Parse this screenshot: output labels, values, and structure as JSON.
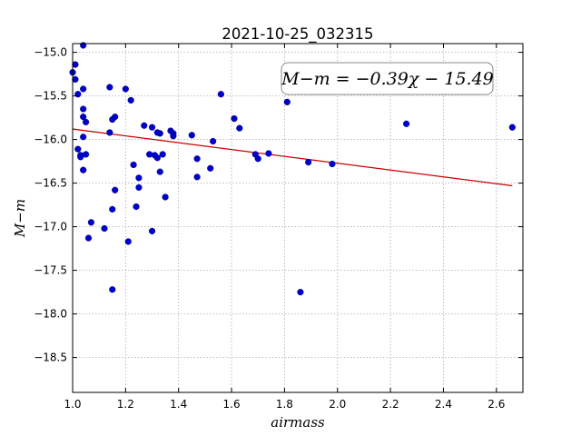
{
  "chart_data": {
    "type": "scatter",
    "title": "2021-10-25_032315",
    "xlabel": "airmass",
    "ylabel": "M−m",
    "xlim": [
      1.0,
      2.7
    ],
    "ylim": [
      -18.9,
      -14.9
    ],
    "y_inverted": true,
    "grid": true,
    "xticks": [
      "1.0",
      "1.2",
      "1.4",
      "1.6",
      "1.8",
      "2.0",
      "2.2",
      "2.4",
      "2.6"
    ],
    "yticks": [
      "−15.0",
      "−15.5",
      "−16.0",
      "−16.5",
      "−17.0",
      "−17.5",
      "−18.0",
      "−18.5"
    ],
    "annotation": "M−m = −0.39χ − 15.49",
    "colors": {
      "points": "#0000cc",
      "fit_line": "#cc0000",
      "frame": "#000000"
    },
    "series": [
      {
        "kind": "points",
        "x": [
          1.0,
          1.01,
          1.04,
          1.01,
          1.02,
          1.04,
          1.04,
          1.04,
          1.05,
          1.04,
          1.02,
          1.03,
          1.04,
          1.05,
          1.03,
          1.07,
          1.06,
          1.14,
          1.2,
          1.22,
          1.14,
          1.15,
          1.16,
          1.27,
          1.3,
          1.32,
          1.33,
          1.32,
          1.29,
          1.31,
          1.34,
          1.37,
          1.38,
          1.38,
          1.33,
          1.23,
          1.25,
          1.25,
          1.16,
          1.24,
          1.15,
          1.12,
          1.21,
          1.3,
          1.35,
          1.45,
          1.47,
          1.47,
          1.52,
          1.53,
          1.56,
          1.61,
          1.63,
          1.69,
          1.7,
          1.74,
          1.81,
          1.89,
          1.98,
          2.26,
          2.66,
          1.86,
          1.15
        ],
        "y": [
          -15.23,
          -15.31,
          -14.92,
          -15.14,
          -15.48,
          -15.42,
          -15.74,
          -15.65,
          -15.8,
          -15.97,
          -16.11,
          -16.18,
          -16.35,
          -16.17,
          -16.2,
          -16.95,
          -17.13,
          -15.4,
          -15.42,
          -15.55,
          -15.92,
          -15.77,
          -15.74,
          -15.84,
          -15.86,
          -16.21,
          -15.93,
          -15.92,
          -16.17,
          -16.18,
          -16.17,
          -15.9,
          -15.93,
          -15.96,
          -16.37,
          -16.29,
          -16.44,
          -16.55,
          -16.58,
          -16.77,
          -16.8,
          -17.02,
          -17.17,
          -17.05,
          -16.66,
          -15.95,
          -16.22,
          -16.43,
          -16.33,
          -16.02,
          -15.48,
          -15.76,
          -15.87,
          -16.17,
          -16.22,
          -16.16,
          -15.57,
          -16.26,
          -16.28,
          -15.82,
          -15.86,
          -17.75,
          -17.72
        ]
      },
      {
        "kind": "fit_line",
        "x": [
          1.0,
          2.66
        ],
        "y": [
          -15.88,
          -16.53
        ]
      }
    ]
  }
}
